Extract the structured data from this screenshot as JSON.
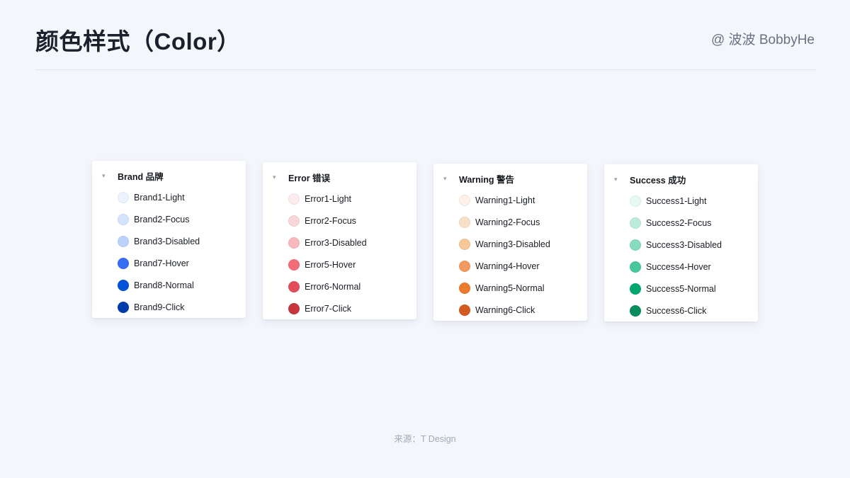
{
  "page": {
    "title": "颜色样式（Color）",
    "author": "@ 波波 BobbyHe",
    "source": "来源：T Design",
    "background_color": "#F3F6FB"
  },
  "palette_groups": [
    {
      "name": "Brand 品牌",
      "items": [
        {
          "label": "Brand1-Light",
          "color": "#ECF2FE"
        },
        {
          "label": "Brand2-Focus",
          "color": "#D4E3FC"
        },
        {
          "label": "Brand3-Disabled",
          "color": "#BBD3FB"
        },
        {
          "label": "Brand7-Hover",
          "color": "#366EF4"
        },
        {
          "label": "Brand8-Normal",
          "color": "#0052D9"
        },
        {
          "label": "Brand9-Click",
          "color": "#003CAB"
        }
      ]
    },
    {
      "name": "Error 错误",
      "items": [
        {
          "label": "Error1-Light",
          "color": "#FDECEE"
        },
        {
          "label": "Error2-Focus",
          "color": "#F9D7D9"
        },
        {
          "label": "Error3-Disabled",
          "color": "#F8B9BE"
        },
        {
          "label": "Error5-Hover",
          "color": "#F36D78"
        },
        {
          "label": "Error6-Normal",
          "color": "#E34D59"
        },
        {
          "label": "Error7-Click",
          "color": "#C9353F"
        }
      ]
    },
    {
      "name": "Warning 警告",
      "items": [
        {
          "label": "Warning1-Light",
          "color": "#FFF1E9"
        },
        {
          "label": "Warning2-Focus",
          "color": "#F9E0C7"
        },
        {
          "label": "Warning3-Disabled",
          "color": "#F7C797"
        },
        {
          "label": "Warning4-Hover",
          "color": "#F2995F"
        },
        {
          "label": "Warning5-Normal",
          "color": "#ED7B2F"
        },
        {
          "label": "Warning6-Click",
          "color": "#D35A21"
        }
      ]
    },
    {
      "name": "Success 成功",
      "items": [
        {
          "label": "Success1-Light",
          "color": "#E8F8F2"
        },
        {
          "label": "Success2-Focus",
          "color": "#BCEBDC"
        },
        {
          "label": "Success3-Disabled",
          "color": "#85DBBE"
        },
        {
          "label": "Success4-Hover",
          "color": "#48C79C"
        },
        {
          "label": "Success5-Normal",
          "color": "#00A870"
        },
        {
          "label": "Success6-Click",
          "color": "#078D5C"
        }
      ]
    }
  ]
}
